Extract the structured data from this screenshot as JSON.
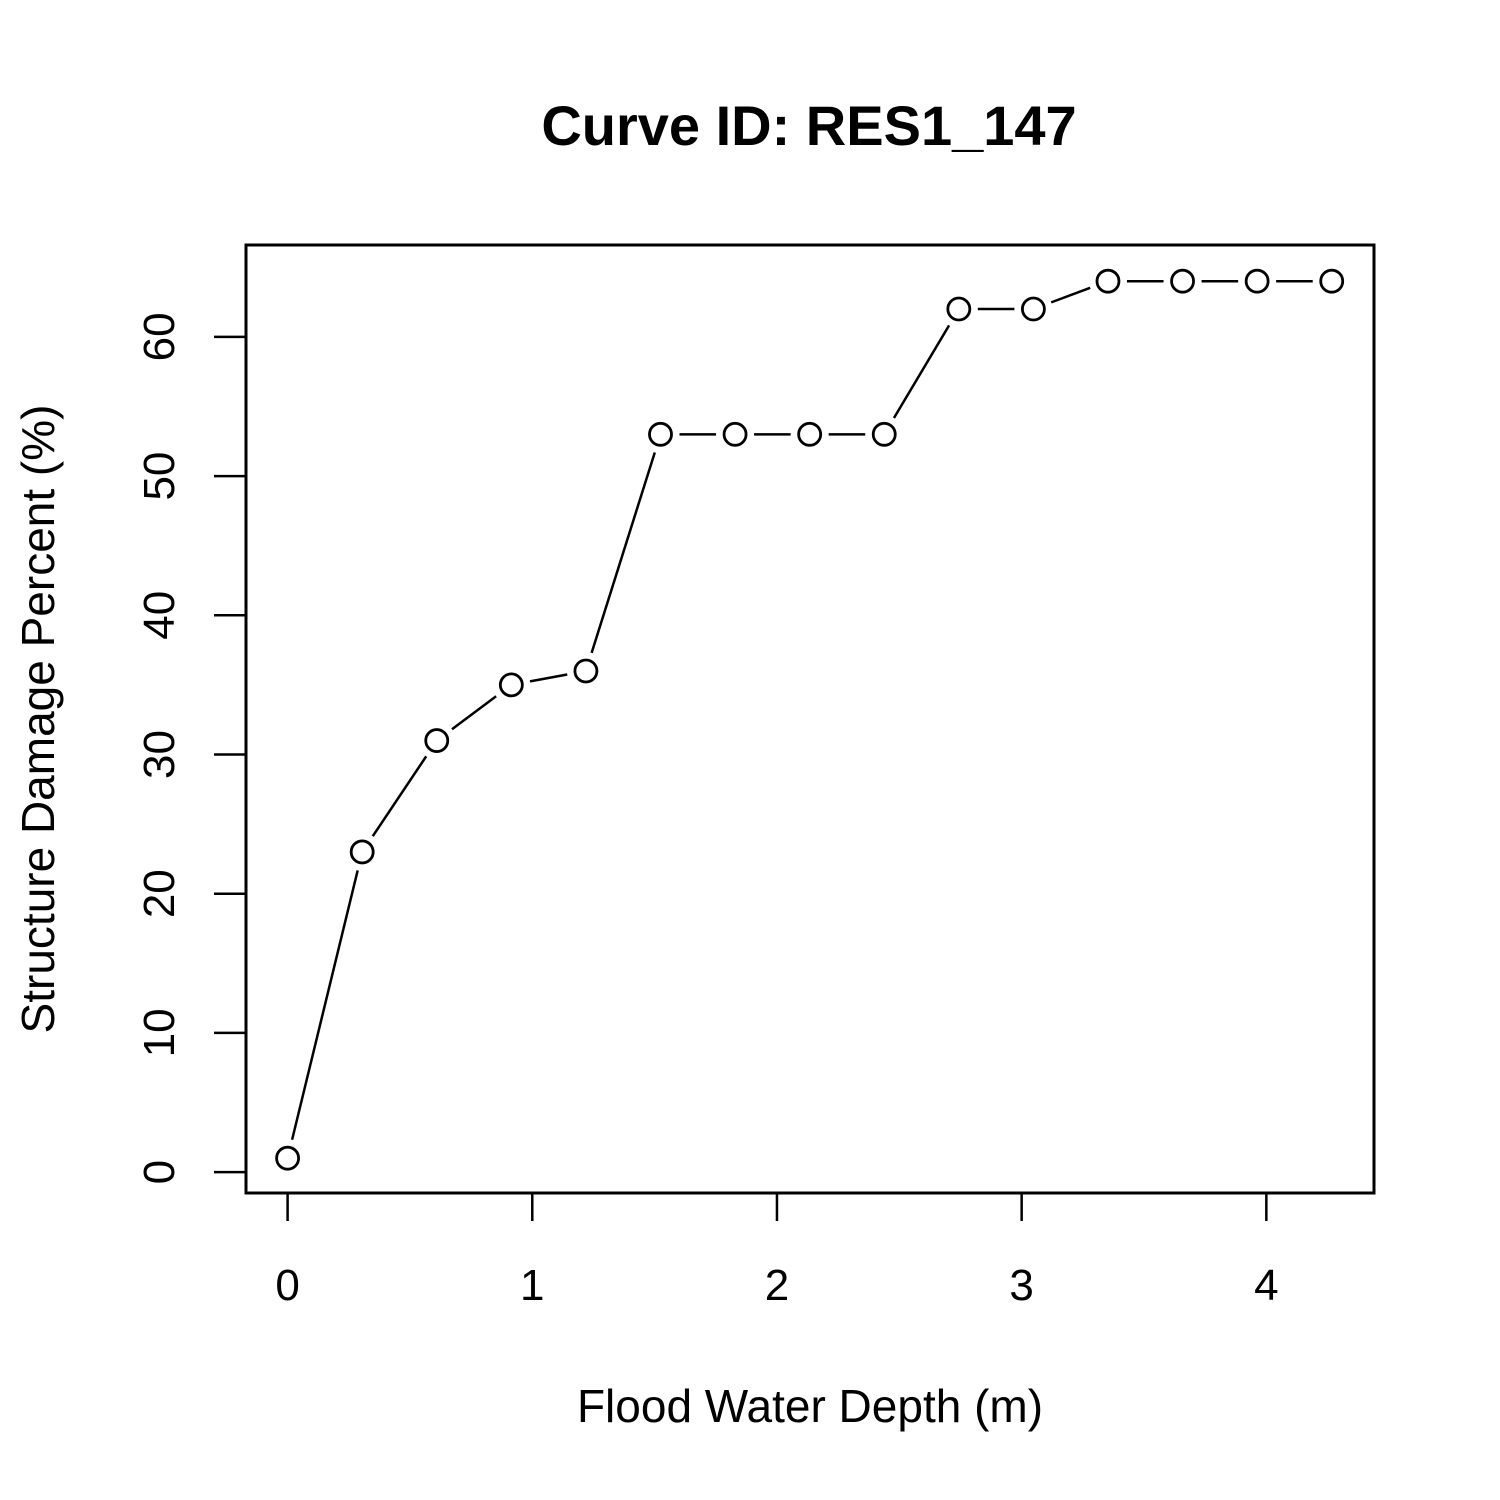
{
  "chart_data": {
    "type": "line",
    "title": "Curve ID: RES1_147",
    "xlabel": "Flood Water Depth (m)",
    "ylabel": "Structure Damage Percent (%)",
    "x": [
      0,
      0.3048,
      0.6096,
      0.9144,
      1.2192,
      1.524,
      1.8288,
      2.1336,
      2.4384,
      2.7432,
      3.048,
      3.3528,
      3.6576,
      3.9624,
      4.2672
    ],
    "y": [
      1,
      23,
      31,
      35,
      36,
      53,
      53,
      53,
      53,
      62,
      62,
      64,
      64,
      64,
      64
    ],
    "xlim": [
      -0.17,
      4.44
    ],
    "ylim": [
      -1.5,
      66.6
    ],
    "xticks": [
      "0",
      "1",
      "2",
      "3",
      "4"
    ],
    "yticks": [
      "0",
      "10",
      "20",
      "30",
      "40",
      "50",
      "60"
    ],
    "marker": "open-circle",
    "line_style": "b",
    "grid": false,
    "legend": "none"
  }
}
